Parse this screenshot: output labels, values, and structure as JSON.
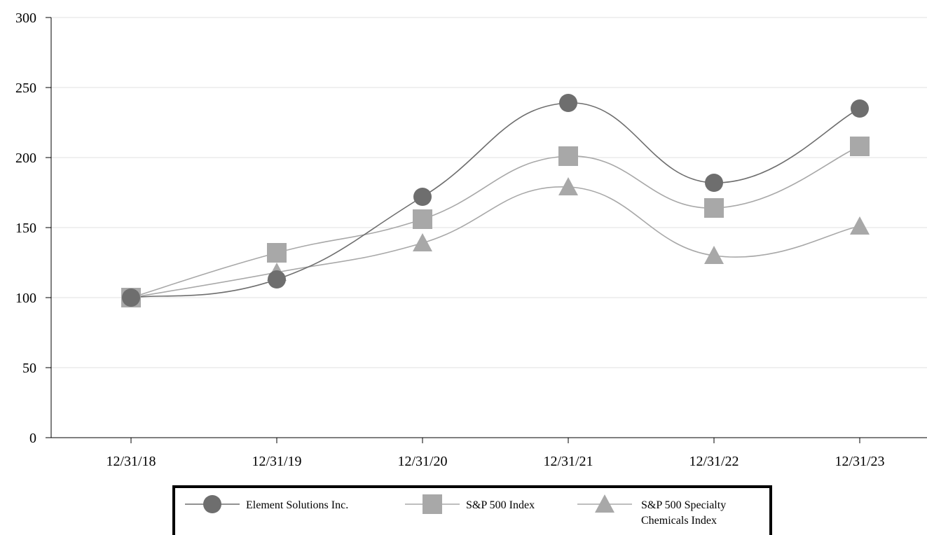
{
  "chart_data": {
    "type": "line",
    "title": "",
    "xlabel": "",
    "ylabel": "",
    "categories": [
      "12/31/18",
      "12/31/19",
      "12/31/20",
      "12/31/21",
      "12/31/22",
      "12/31/23"
    ],
    "ylim": [
      0,
      300
    ],
    "yticks": [
      0,
      50,
      100,
      150,
      200,
      250,
      300
    ],
    "grid": true,
    "legend_position": "bottom",
    "series": [
      {
        "name": "Element Solutions Inc.",
        "marker": "circle",
        "color": "#6e6e6e",
        "values": [
          100,
          113,
          172,
          239,
          182,
          235
        ]
      },
      {
        "name": "S&P 500 Index",
        "marker": "square",
        "color": "#a8a8a8",
        "values": [
          100,
          132,
          156,
          201,
          164,
          208
        ]
      },
      {
        "name": "S&P 500 Specialty Chemicals Index",
        "legend_lines": [
          "S&P 500 Specialty",
          "Chemicals Index"
        ],
        "marker": "triangle",
        "color": "#a8a8a8",
        "values": [
          100,
          118,
          139,
          179,
          130,
          151
        ]
      }
    ]
  }
}
